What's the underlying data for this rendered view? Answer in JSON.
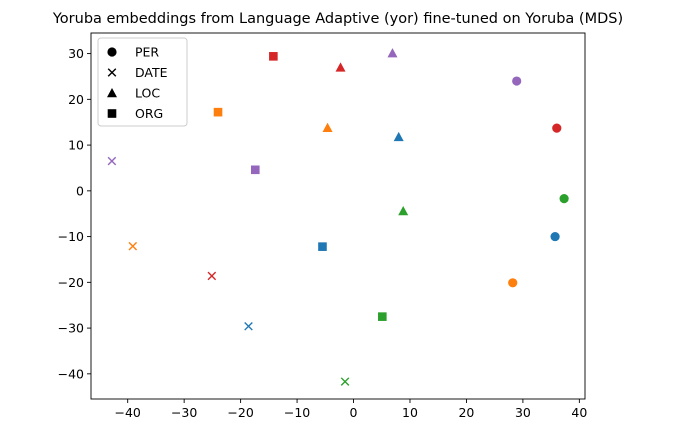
{
  "chart_data": {
    "type": "scatter",
    "title": "Yoruba embeddings from Language Adaptive (yor) fine-tuned on Yoruba (MDS)",
    "xlabel": "",
    "ylabel": "",
    "xlim": [
      -46.5,
      41
    ],
    "ylim": [
      -45.5,
      34.5
    ],
    "xticks": [
      -40,
      -30,
      -20,
      -10,
      0,
      10,
      20,
      30,
      40
    ],
    "yticks": [
      -40,
      -30,
      -20,
      -10,
      0,
      10,
      20,
      30
    ],
    "xtick_labels": [
      "−40",
      "−30",
      "−20",
      "−10",
      "0",
      "10",
      "20",
      "30",
      "40"
    ],
    "ytick_labels": [
      "−40",
      "−30",
      "−20",
      "−10",
      "0",
      "10",
      "20",
      "30"
    ],
    "grid": false,
    "legend_position": "top-left",
    "legend": [
      {
        "label": "PER",
        "marker": "circle"
      },
      {
        "label": "DATE",
        "marker": "x"
      },
      {
        "label": "LOC",
        "marker": "triangle"
      },
      {
        "label": "ORG",
        "marker": "square"
      }
    ],
    "points": [
      {
        "x": 35.7,
        "y": -10.0,
        "marker": "circle",
        "color": "#1f77b4"
      },
      {
        "x": 28.2,
        "y": -20.1,
        "marker": "circle",
        "color": "#ff7f0e"
      },
      {
        "x": 37.3,
        "y": -1.7,
        "marker": "circle",
        "color": "#2ca02c"
      },
      {
        "x": 36.0,
        "y": 13.7,
        "marker": "circle",
        "color": "#d62728"
      },
      {
        "x": 28.9,
        "y": 24.0,
        "marker": "circle",
        "color": "#9467bd"
      },
      {
        "x": -18.6,
        "y": -29.6,
        "marker": "x",
        "color": "#1f77b4"
      },
      {
        "x": -39.1,
        "y": -12.1,
        "marker": "x",
        "color": "#ff7f0e"
      },
      {
        "x": -1.5,
        "y": -41.7,
        "marker": "x",
        "color": "#2ca02c"
      },
      {
        "x": -25.1,
        "y": -18.6,
        "marker": "x",
        "color": "#d62728"
      },
      {
        "x": -42.8,
        "y": 6.5,
        "marker": "x",
        "color": "#9467bd"
      },
      {
        "x": 8.0,
        "y": 11.8,
        "marker": "triangle",
        "color": "#1f77b4"
      },
      {
        "x": -4.6,
        "y": 13.8,
        "marker": "triangle",
        "color": "#ff7f0e"
      },
      {
        "x": 8.8,
        "y": -4.4,
        "marker": "triangle",
        "color": "#2ca02c"
      },
      {
        "x": -2.3,
        "y": 27.0,
        "marker": "triangle",
        "color": "#d62728"
      },
      {
        "x": 6.9,
        "y": 30.1,
        "marker": "triangle",
        "color": "#9467bd"
      },
      {
        "x": -5.5,
        "y": -12.2,
        "marker": "square",
        "color": "#1f77b4"
      },
      {
        "x": -24.0,
        "y": 17.2,
        "marker": "square",
        "color": "#ff7f0e"
      },
      {
        "x": 5.1,
        "y": -27.5,
        "marker": "square",
        "color": "#2ca02c"
      },
      {
        "x": -14.2,
        "y": 29.4,
        "marker": "square",
        "color": "#d62728"
      },
      {
        "x": -17.4,
        "y": 4.6,
        "marker": "square",
        "color": "#9467bd"
      }
    ]
  }
}
